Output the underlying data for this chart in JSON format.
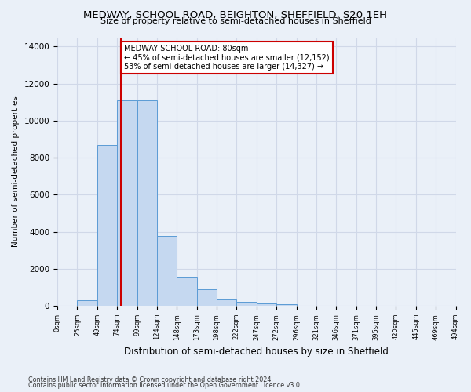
{
  "title": "MEDWAY, SCHOOL ROAD, BEIGHTON, SHEFFIELD, S20 1EH",
  "subtitle": "Size of property relative to semi-detached houses in Sheffield",
  "xlabel": "Distribution of semi-detached houses by size in Sheffield",
  "ylabel": "Number of semi-detached properties",
  "bar_values": [
    0,
    300,
    8700,
    11100,
    11100,
    3750,
    1550,
    900,
    350,
    230,
    150,
    100,
    0,
    0,
    0,
    0,
    0,
    0,
    0,
    0
  ],
  "tick_labels": [
    "0sqm",
    "25sqm",
    "49sqm",
    "74sqm",
    "99sqm",
    "124sqm",
    "148sqm",
    "173sqm",
    "198sqm",
    "222sqm",
    "247sqm",
    "272sqm",
    "296sqm",
    "321sqm",
    "346sqm",
    "371sqm",
    "395sqm",
    "420sqm",
    "445sqm",
    "469sqm",
    "494sqm"
  ],
  "bar_color": "#c5d8f0",
  "bar_edge_color": "#5b9bd5",
  "vline_bin": 3,
  "vline_color": "#cc0000",
  "annotation_title": "MEDWAY SCHOOL ROAD: 80sqm",
  "annotation_line1": "← 45% of semi-detached houses are smaller (12,152)",
  "annotation_line2": "53% of semi-detached houses are larger (14,327) →",
  "annotation_box_color": "#ffffff",
  "annotation_box_edge": "#cc0000",
  "ylim": [
    0,
    14500
  ],
  "yticks": [
    0,
    2000,
    4000,
    6000,
    8000,
    10000,
    12000,
    14000
  ],
  "grid_color": "#d0d8e8",
  "bg_color": "#eaf0f8",
  "footnote1": "Contains HM Land Registry data © Crown copyright and database right 2024.",
  "footnote2": "Contains public sector information licensed under the Open Government Licence v3.0."
}
